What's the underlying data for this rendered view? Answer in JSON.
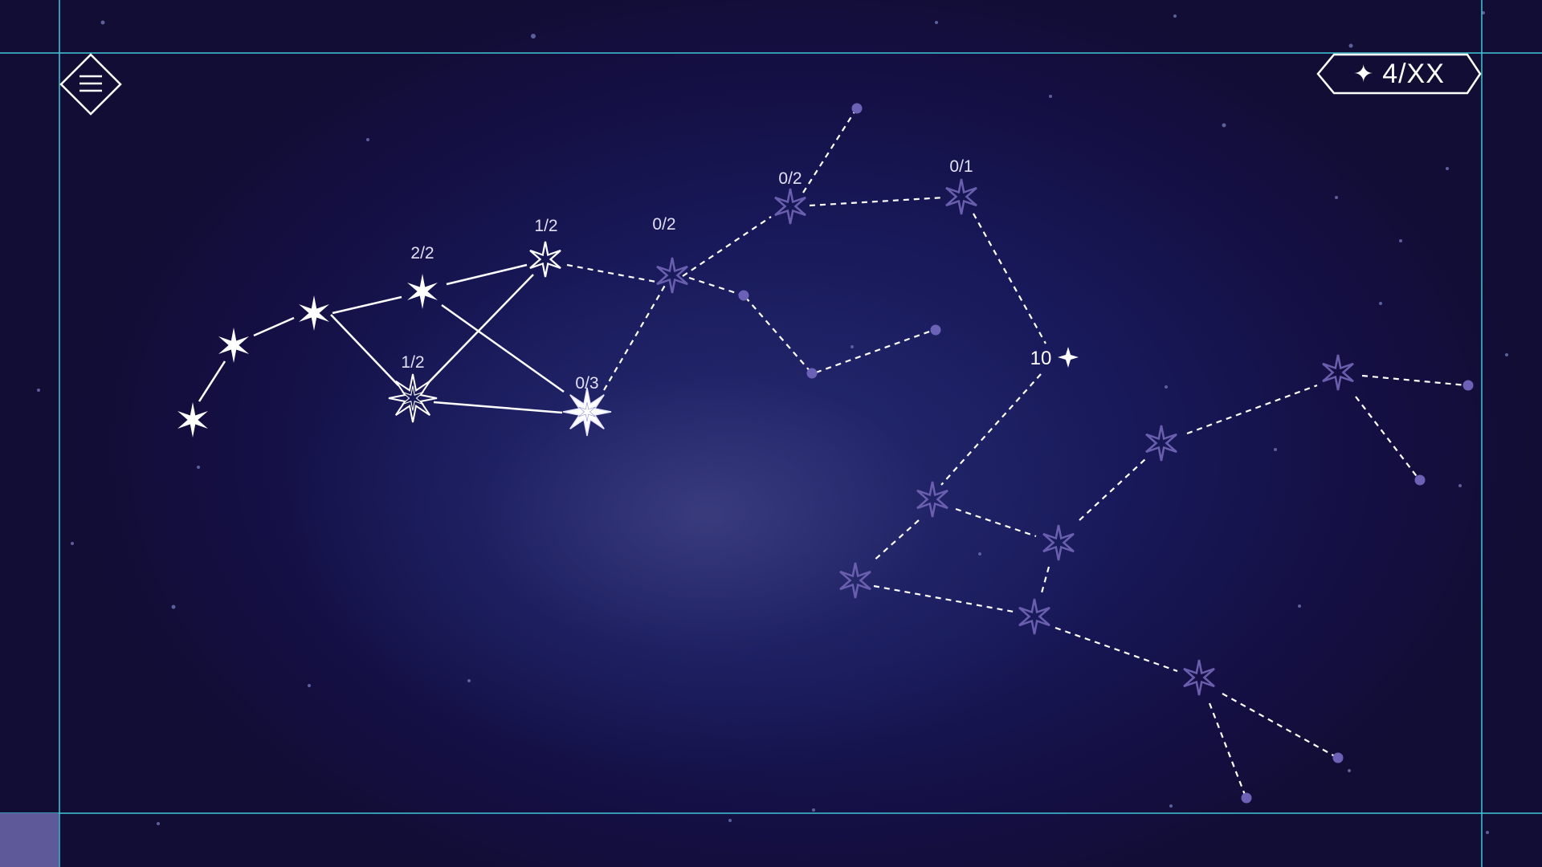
{
  "hud": {
    "menu_icon": "hamburger-icon",
    "counter_icon": "sparkle-icon",
    "counter_glyph": "✦",
    "counter_text": "4/XX"
  },
  "colors": {
    "guide": "#3fc6d6",
    "active": "#ffffff",
    "inactive": "#6a5fae",
    "dim_label": "#d8d4f2",
    "corner_swatch": "#5e5a99"
  },
  "stars": [
    {
      "id": "s1",
      "label": "",
      "state": "filled"
    },
    {
      "id": "s2",
      "label": "",
      "state": "filled"
    },
    {
      "id": "s3",
      "label": "",
      "state": "filled"
    },
    {
      "id": "s4",
      "label": "2/2",
      "state": "filled"
    },
    {
      "id": "s5",
      "label": "1/2",
      "state": "outline"
    },
    {
      "id": "s6",
      "label": "1/2",
      "state": "compass"
    },
    {
      "id": "s7",
      "label": "0/3",
      "state": "compass-bright"
    },
    {
      "id": "s8",
      "label": "0/2",
      "state": "locked"
    },
    {
      "id": "s9",
      "label": "0/2",
      "state": "locked"
    },
    {
      "id": "s10",
      "label": "0/1",
      "state": "locked"
    },
    {
      "id": "s11",
      "label": "",
      "state": "locked"
    },
    {
      "id": "s12",
      "label": "",
      "state": "locked"
    },
    {
      "id": "s13",
      "label": "",
      "state": "locked"
    },
    {
      "id": "s14",
      "label": "",
      "state": "locked"
    },
    {
      "id": "s15",
      "label": "",
      "state": "locked"
    },
    {
      "id": "s16",
      "label": "",
      "state": "locked"
    },
    {
      "id": "s17",
      "label": "",
      "state": "locked"
    },
    {
      "id": "s18",
      "label": "",
      "state": "locked"
    }
  ],
  "reward": {
    "value": "10",
    "glyph": "✦"
  }
}
